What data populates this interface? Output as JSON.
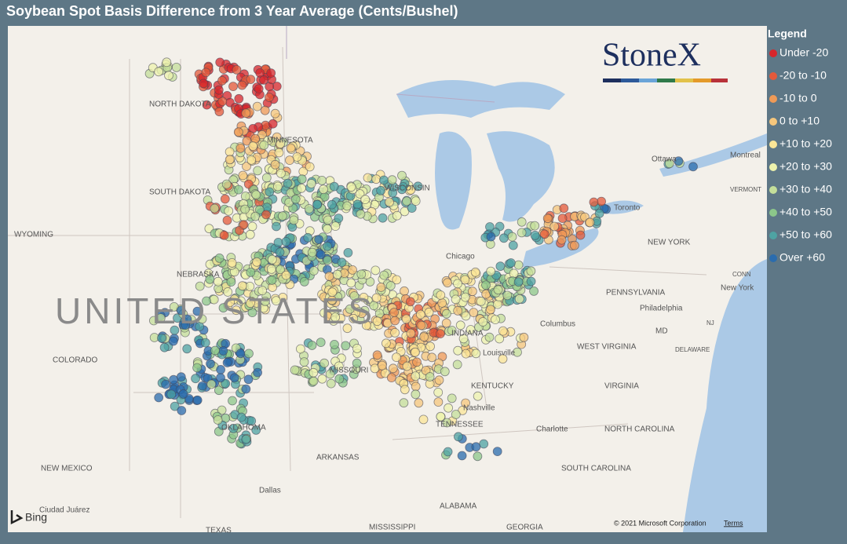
{
  "header": {
    "title": "Soybean Spot Basis Difference from 3 Year Average (Cents/Bushel)"
  },
  "legend": {
    "title": "Legend",
    "items": [
      {
        "label": "Under -20",
        "color": "#d7262b"
      },
      {
        "label": "-20 to -10",
        "color": "#e4593a"
      },
      {
        "label": "-10 to 0",
        "color": "#ef9a57"
      },
      {
        "label": "0 to +10",
        "color": "#f6c77c"
      },
      {
        "label": "+10 to +20",
        "color": "#fbe697"
      },
      {
        "label": "+20 to +30",
        "color": "#eef3ad"
      },
      {
        "label": "+30 to +40",
        "color": "#c4df9a"
      },
      {
        "label": "+40 to +50",
        "color": "#8cc78a"
      },
      {
        "label": "+50 to +60",
        "color": "#4ea3a3"
      },
      {
        "label": "Over +60",
        "color": "#2a6cae"
      }
    ]
  },
  "map": {
    "labels": [
      "NORTH DAKOTA",
      "MINNESOTA",
      "SOUTH DAKOTA",
      "WYOMING",
      "NEBRASKA",
      "UNITED STATES",
      "COLORADO",
      "NEW MEXICO",
      "OKLAHOMA",
      "ARKANSAS",
      "MISSOURI",
      "Dallas",
      "Ciudad Juárez",
      "TEXAS",
      "MISSISSIPPI",
      "ALABAMA",
      "GEORGIA",
      "TENNESSEE",
      "Nashville",
      "KENTUCKY",
      "Louisville",
      "WEST VIRGINIA",
      "VIRGINIA",
      "NORTH CAROLINA",
      "SOUTH CAROLINA",
      "Charlotte",
      "PENNSYLVANIA",
      "Philadelphia",
      "NEW YORK",
      "New York",
      "Columbus",
      "Chicago",
      "Toronto",
      "Ottawa",
      "Montreal",
      "VERMONT",
      "CONN",
      "MD",
      "NJ",
      "DELAWARE",
      "WISCONSIN",
      "INDIANA"
    ],
    "logo": "StoneX",
    "provider": "Bing",
    "copyright": "© 2021 Microsoft Corporation",
    "terms": "Terms"
  }
}
